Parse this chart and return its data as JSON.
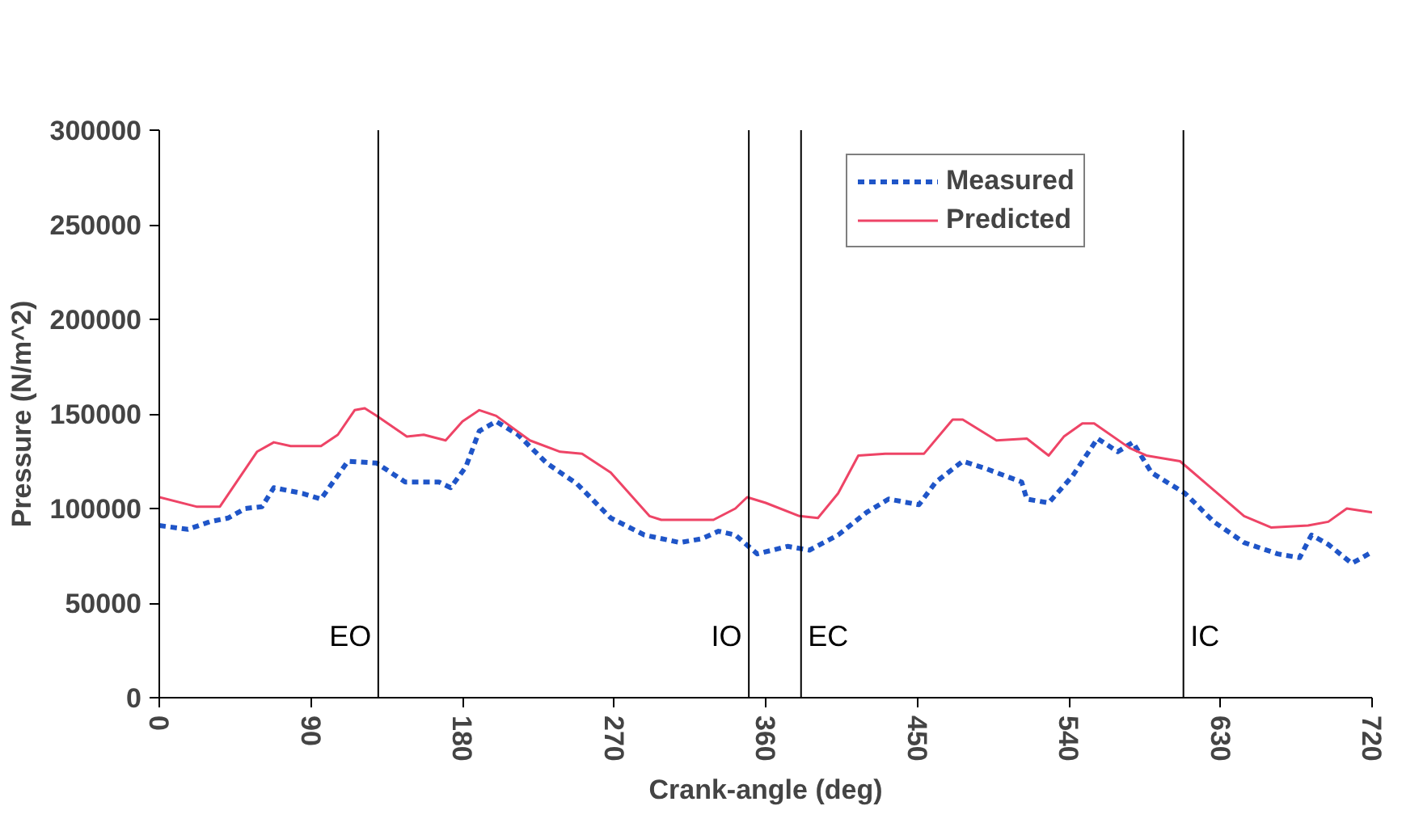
{
  "chart_data": {
    "type": "line",
    "xlabel": "Crank-angle (deg)",
    "ylabel": "Pressure (N/m^2)",
    "xlim": [
      0,
      720
    ],
    "ylim": [
      0,
      300000
    ],
    "xticks": [
      0,
      90,
      180,
      270,
      360,
      450,
      540,
      630,
      720
    ],
    "yticks": [
      0,
      50000,
      100000,
      150000,
      200000,
      250000,
      300000
    ],
    "grid": false,
    "legend": "top",
    "marker": "none",
    "series": [
      {
        "name": "Measured",
        "color": "#1f55c8",
        "line_style": "dashed",
        "x": [
          0,
          17,
          30,
          41,
          51,
          61,
          68,
          85,
          96,
          112,
          129,
          146,
          166,
          173,
          182,
          190,
          200,
          213,
          230,
          248,
          268,
          288,
          309,
          322,
          332,
          342,
          355,
          373,
          386,
          403,
          420,
          433,
          451,
          461,
          477,
          491,
          512,
          515,
          528,
          542,
          557,
          569,
          578,
          589,
          609,
          626,
          644,
          664,
          677,
          684,
          694,
          708,
          720
        ],
        "values": [
          91000,
          89000,
          93000,
          95000,
          100000,
          101000,
          111000,
          108000,
          105000,
          125000,
          124000,
          114000,
          114000,
          111000,
          122000,
          141000,
          146000,
          139000,
          124000,
          113000,
          95000,
          86000,
          82000,
          84000,
          88000,
          86000,
          76000,
          80000,
          78000,
          86000,
          98000,
          105000,
          102000,
          114000,
          125000,
          121000,
          114000,
          105000,
          103000,
          117000,
          137000,
          130000,
          135000,
          119000,
          108000,
          93000,
          82000,
          76000,
          74000,
          86000,
          81000,
          71000,
          77000
        ]
      },
      {
        "name": "Predicted",
        "color": "#ee4466",
        "line_style": "solid",
        "x": [
          0,
          22,
          36,
          58,
          68,
          78,
          96,
          106,
          116,
          122,
          129,
          147,
          157,
          170,
          180,
          190,
          200,
          220,
          238,
          251,
          268,
          291,
          298,
          329,
          342,
          349,
          360,
          380,
          391,
          403,
          415,
          431,
          454,
          471,
          477,
          497,
          515,
          528,
          537,
          548,
          555,
          576,
          586,
          606,
          623,
          644,
          660,
          682,
          694,
          705,
          720
        ],
        "values": [
          106000,
          101000,
          101000,
          130000,
          135000,
          133000,
          133000,
          139000,
          152000,
          153000,
          149000,
          138000,
          139000,
          136000,
          146000,
          152000,
          149000,
          136000,
          130000,
          129000,
          119000,
          96000,
          94000,
          94000,
          100000,
          106000,
          103000,
          96000,
          95000,
          108000,
          128000,
          129000,
          129000,
          147000,
          147000,
          136000,
          137000,
          128000,
          138000,
          145000,
          145000,
          132000,
          128000,
          125000,
          112000,
          96000,
          90000,
          91000,
          93000,
          100000,
          98000
        ]
      }
    ],
    "ref_lines": [
      {
        "axis": "x",
        "value": 130,
        "label": "EO",
        "color": "#000000"
      },
      {
        "axis": "x",
        "value": 350,
        "label": "IO",
        "color": "#000000"
      },
      {
        "axis": "x",
        "value": 381,
        "label": "EC",
        "color": "#000000"
      },
      {
        "axis": "x",
        "value": 608,
        "label": "IC",
        "color": "#000000"
      }
    ]
  }
}
